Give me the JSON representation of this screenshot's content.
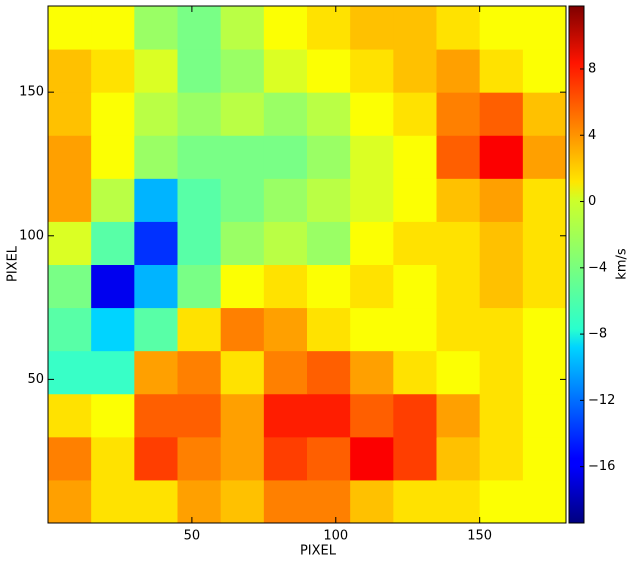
{
  "chart_data": {
    "type": "heatmap",
    "xlabel": "PIXEL",
    "ylabel": "PIXEL",
    "colorbar_label": "km/s",
    "colormap": "jet",
    "xbins": [
      0,
      15,
      30,
      45,
      60,
      75,
      90,
      105,
      120,
      135,
      150,
      165,
      180
    ],
    "ybins": [
      0,
      15,
      30,
      45,
      60,
      75,
      90,
      105,
      120,
      135,
      150,
      165,
      180
    ],
    "values": [
      [
        3,
        1,
        1,
        3,
        2,
        4,
        4,
        2,
        1,
        1,
        0,
        0
      ],
      [
        4,
        1,
        6,
        4,
        3,
        6,
        5,
        8,
        6,
        2,
        1,
        0
      ],
      [
        1,
        0,
        5,
        5,
        3,
        7,
        7,
        5,
        6,
        3,
        1,
        0
      ],
      [
        -6,
        -6,
        3,
        4,
        1,
        4,
        5,
        3,
        1,
        0,
        1,
        0
      ],
      [
        -5,
        -9,
        -5,
        1,
        4,
        3,
        1,
        0,
        0,
        1,
        1,
        0
      ],
      [
        -4,
        -16,
        -10,
        -4,
        0,
        1,
        0,
        1,
        0,
        1,
        2,
        1
      ],
      [
        -1,
        -5,
        -14,
        -5,
        -3,
        -2,
        -3,
        0,
        1,
        1,
        2,
        1
      ],
      [
        3,
        -2,
        -10,
        -5,
        -4,
        -3,
        -2,
        -1,
        0,
        2,
        3,
        1
      ],
      [
        3,
        0,
        -3,
        -4,
        -4,
        -4,
        -3,
        -1,
        0,
        5,
        8,
        3
      ],
      [
        2,
        0,
        -2,
        -3,
        -2,
        -3,
        -2,
        0,
        1,
        4,
        5,
        2
      ],
      [
        2,
        1,
        -1,
        -4,
        -3,
        -1,
        0,
        1,
        2,
        3,
        1,
        0
      ],
      [
        0,
        0,
        -3,
        -4,
        -2,
        0,
        1,
        2,
        2,
        1,
        0,
        0
      ]
    ],
    "xlim": [
      0,
      180
    ],
    "ylim": [
      0,
      180
    ],
    "xticks": [
      50,
      100,
      150
    ],
    "yticks": [
      50,
      100,
      150
    ],
    "clim": [
      -19.4,
      11.8
    ],
    "cticks": [
      {
        "value": -16,
        "label": "−16"
      },
      {
        "value": -12,
        "label": "−12"
      },
      {
        "value": -8,
        "label": "−8"
      },
      {
        "value": -4,
        "label": "−4"
      },
      0,
      4,
      8
    ]
  }
}
